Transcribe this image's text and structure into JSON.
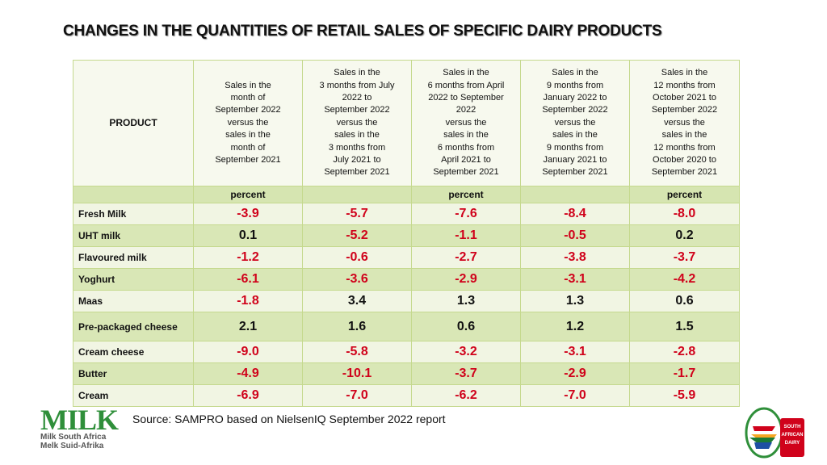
{
  "title": "CHANGES IN THE QUANTITIES OF RETAIL SALES OF SPECIFIC DAIRY PRODUCTS",
  "table": {
    "product_header": "PRODUCT",
    "headers": [
      "Sales in the\nmonth of\nSeptember 2022\nversus the\nsales in the\nmonth of\nSeptember 2021",
      "Sales in the\n3 months from July\n2022 to\nSeptember 2022\nversus the\nsales in the\n3 months from\nJuly 2021 to\nSeptember 2021",
      "Sales in the\n6 months from April\n2022 to September\n2022\nversus the\nsales in the\n6 months from\nApril 2021 to\nSeptember 2021",
      "Sales in the\n9 months from\nJanuary 2022 to\nSeptember 2022\nversus the\nsales in the\n9 months from\nJanuary 2021 to\nSeptember 2021",
      "Sales in the\n12 months from\nOctober 2021 to\nSeptember 2022\nversus the\nsales in the\n12 months from\nOctober 2020 to\nSeptember 2021"
    ],
    "unit_row": [
      "percent",
      "",
      "percent",
      "",
      "percent"
    ],
    "rows": [
      {
        "product": "Fresh Milk",
        "values": [
          "-3.9",
          "-5.7",
          "-7.6",
          "-8.4",
          "-8.0"
        ]
      },
      {
        "product": "UHT milk",
        "values": [
          "0.1",
          "-5.2",
          "-1.1",
          "-0.5",
          "0.2"
        ]
      },
      {
        "product": "Flavoured milk",
        "values": [
          "-1.2",
          "-0.6",
          "-2.7",
          "-3.8",
          "-3.7"
        ]
      },
      {
        "product": "Yoghurt",
        "values": [
          "-6.1",
          "-3.6",
          "-2.9",
          "-3.1",
          "-4.2"
        ]
      },
      {
        "product": "Maas",
        "values": [
          "-1.8",
          "3.4",
          "1.3",
          "1.3",
          "0.6"
        ]
      },
      {
        "product": "Pre-packaged cheese",
        "values": [
          "2.1",
          "1.6",
          "0.6",
          "1.2",
          "1.5"
        ]
      },
      {
        "product": "Cream cheese",
        "values": [
          "-9.0",
          "-5.8",
          "-3.2",
          "-3.1",
          "-2.8"
        ]
      },
      {
        "product": "Butter",
        "values": [
          "-4.9",
          "-10.1",
          "-3.7",
          "-2.9",
          "-1.7"
        ]
      },
      {
        "product": "Cream",
        "values": [
          "-6.9",
          "-7.0",
          "-6.2",
          "-7.0",
          "-5.9"
        ]
      }
    ]
  },
  "source": "Source: SAMPRO based on NielsenIQ September 2022 report",
  "logo_left": {
    "name": "MILK",
    "line1": "Milk South Africa",
    "line2": "Melk Suid-Afrika"
  },
  "logo_right": {
    "lines": [
      "SOUTH",
      "AFRICAN",
      "DAIRY"
    ]
  },
  "colors": {
    "negative": "#d0021b",
    "positive": "#111111",
    "row_light": "#f1f5e3",
    "row_dark": "#d9e7b6",
    "brand_green": "#2f8f3a",
    "brand_red": "#d0021b"
  }
}
